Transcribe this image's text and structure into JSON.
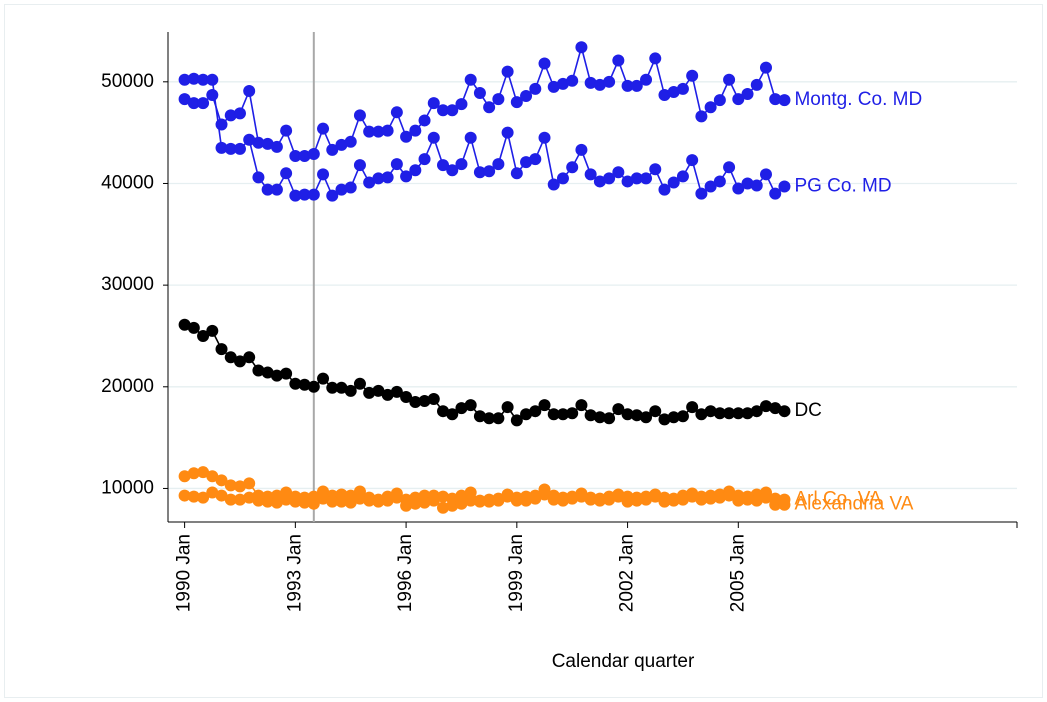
{
  "chart_data": {
    "type": "line",
    "x_label": "Calendar quarter",
    "x": [
      1990,
      1990.25,
      1990.5,
      1990.75,
      1991,
      1991.25,
      1991.5,
      1991.75,
      1992,
      1992.25,
      1992.5,
      1992.75,
      1993,
      1993.25,
      1993.5,
      1993.75,
      1994,
      1994.25,
      1994.5,
      1994.75,
      1995,
      1995.25,
      1995.5,
      1995.75,
      1996,
      1996.25,
      1996.5,
      1996.75,
      1997,
      1997.25,
      1997.5,
      1997.75,
      1998,
      1998.25,
      1998.5,
      1998.75,
      1999,
      1999.25,
      1999.5,
      1999.75,
      2000,
      2000.25,
      2000.5,
      2000.75,
      2001,
      2001.25,
      2001.5,
      2001.75,
      2002,
      2002.25,
      2002.5,
      2002.75,
      2003,
      2003.25,
      2003.5,
      2003.75,
      2004,
      2004.25,
      2004.5,
      2004.75,
      2005,
      2005.25,
      2005.5,
      2005.75,
      2006,
      2006.25
    ],
    "series": [
      {
        "name": "Montg. Co. MD",
        "color": "#1f1fe6",
        "values": [
          48300,
          47900,
          47900,
          48700,
          45800,
          46700,
          46900,
          49100,
          44000,
          43900,
          43600,
          45200,
          42700,
          42700,
          42900,
          45400,
          43300,
          43800,
          44100,
          46700,
          45100,
          45100,
          45200,
          47000,
          44600,
          45200,
          46200,
          47900,
          47200,
          47200,
          47800,
          50200,
          48900,
          47500,
          48300,
          51000,
          48000,
          48600,
          49300,
          51800,
          49500,
          49800,
          50100,
          53400,
          49900,
          49700,
          50000,
          52100,
          49600,
          49600,
          50200,
          52300,
          48700,
          49000,
          49300,
          50600,
          46600,
          47500,
          48200,
          50200,
          48300,
          48800,
          49700,
          51400,
          48300,
          48200
        ]
      },
      {
        "name": "PG Co. MD",
        "color": "#1f1fe6",
        "values": [
          50200,
          50300,
          50200,
          50200,
          43500,
          43400,
          43400,
          44300,
          40600,
          39400,
          39400,
          41000,
          38800,
          38900,
          38900,
          40900,
          38800,
          39400,
          39600,
          41800,
          40100,
          40500,
          40600,
          41900,
          40700,
          41300,
          42400,
          44500,
          41800,
          41300,
          41900,
          44500,
          41100,
          41200,
          41900,
          45000,
          41000,
          42100,
          42400,
          44500,
          39900,
          40500,
          41600,
          43300,
          40900,
          40200,
          40500,
          41100,
          40200,
          40500,
          40500,
          41400,
          39400,
          40100,
          40700,
          42300,
          39000,
          39700,
          40200,
          41600,
          39500,
          40000,
          39800,
          40900,
          39000,
          39700
        ]
      },
      {
        "name": "DC",
        "color": "#000000",
        "values": [
          26100,
          25800,
          25000,
          25500,
          23700,
          22900,
          22500,
          22900,
          21600,
          21400,
          21100,
          21300,
          20300,
          20200,
          20000,
          20800,
          19900,
          19900,
          19600,
          20300,
          19400,
          19600,
          19200,
          19500,
          19000,
          18500,
          18600,
          18800,
          17600,
          17300,
          17900,
          18200,
          17100,
          16900,
          16900,
          18000,
          16700,
          17300,
          17600,
          18200,
          17300,
          17300,
          17400,
          18200,
          17200,
          17000,
          16900,
          17800,
          17300,
          17200,
          17000,
          17600,
          16800,
          17000,
          17100,
          18000,
          17300,
          17600,
          17400,
          17400,
          17400,
          17400,
          17600,
          18100,
          17900,
          17600
        ]
      },
      {
        "name": "Arl Co. VA",
        "color": "#ff8a12",
        "values": [
          11200,
          11500,
          11600,
          11200,
          10800,
          10300,
          10200,
          10500,
          9300,
          9200,
          9300,
          9600,
          9200,
          9100,
          9200,
          9700,
          9300,
          9400,
          9300,
          9700,
          9100,
          8900,
          9200,
          9500,
          8900,
          9100,
          9300,
          9300,
          9200,
          9000,
          9300,
          9600,
          8800,
          8900,
          9000,
          9400,
          9100,
          9200,
          9300,
          9900,
          9300,
          9100,
          9200,
          9500,
          9100,
          9000,
          9200,
          9400,
          9200,
          9100,
          9200,
          9400,
          9100,
          9000,
          9300,
          9500,
          9200,
          9300,
          9400,
          9700,
          9300,
          9200,
          9400,
          9600,
          9000,
          8900
        ]
      },
      {
        "name": "Alexandria VA",
        "color": "#ff8a12",
        "values": [
          9300,
          9200,
          9100,
          9600,
          9300,
          8900,
          8900,
          9100,
          8800,
          8700,
          8600,
          8900,
          8700,
          8600,
          8500,
          9000,
          8700,
          8700,
          8600,
          9000,
          8800,
          8700,
          8800,
          9100,
          8300,
          8500,
          8600,
          8800,
          8100,
          8300,
          8500,
          8800,
          8700,
          8700,
          8800,
          9200,
          8800,
          8800,
          9000,
          9400,
          8900,
          8800,
          9000,
          9200,
          8900,
          8800,
          8900,
          9200,
          8700,
          8800,
          8900,
          9200,
          8700,
          8800,
          8900,
          9200,
          8900,
          9000,
          9100,
          9300,
          8800,
          8900,
          8800,
          9100,
          8400,
          8400
        ]
      }
    ],
    "xlim": [
      1989.55,
      2012.55
    ],
    "xticks": [
      {
        "value": 1990,
        "label": "1990 Jan"
      },
      {
        "value": 1993,
        "label": "1993 Jan"
      },
      {
        "value": 1996,
        "label": "1996 Jan"
      },
      {
        "value": 1999,
        "label": "1999 Jan"
      },
      {
        "value": 2002,
        "label": "2002 Jan"
      },
      {
        "value": 2005,
        "label": "2005 Jan"
      }
    ],
    "ylim": [
      6700,
      54900
    ],
    "yticks": [
      10000,
      20000,
      30000,
      40000,
      50000
    ],
    "vline": 1993.5,
    "grid": true
  }
}
